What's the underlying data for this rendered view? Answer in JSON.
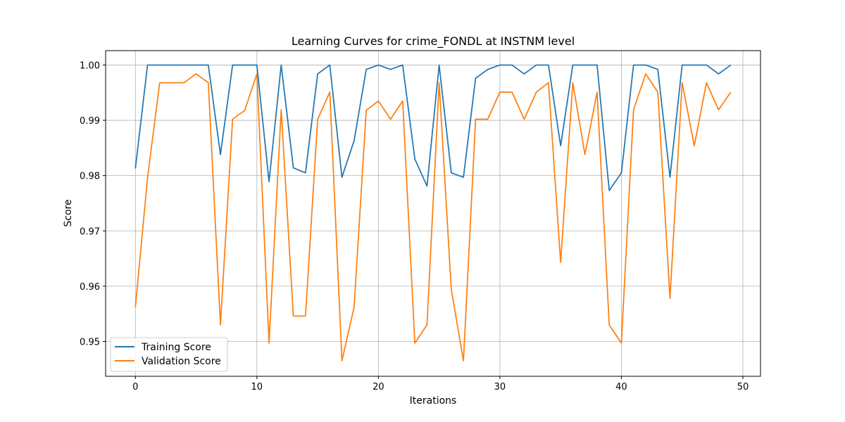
{
  "chart_data": {
    "type": "line",
    "title": "Learning Curves for crime_FONDL at INSTNM level",
    "xlabel": "Iterations",
    "ylabel": "Score",
    "xlim": [
      -2.45,
      51.45
    ],
    "ylim": [
      0.9437,
      1.0026
    ],
    "xticks": [
      0,
      10,
      20,
      30,
      40,
      50
    ],
    "yticks": [
      0.95,
      0.96,
      0.97,
      0.98,
      0.99,
      1.0
    ],
    "ytick_labels": [
      "0.95",
      "0.96",
      "0.97",
      "0.98",
      "0.99",
      "1.00"
    ],
    "grid": true,
    "legend_position": "lower-left",
    "x": [
      0,
      1,
      2,
      3,
      4,
      5,
      6,
      7,
      8,
      9,
      10,
      11,
      12,
      13,
      14,
      15,
      16,
      17,
      18,
      19,
      20,
      21,
      22,
      23,
      24,
      25,
      26,
      27,
      28,
      29,
      30,
      31,
      32,
      33,
      34,
      35,
      36,
      37,
      38,
      39,
      40,
      41,
      42,
      43,
      44,
      45,
      46,
      47,
      48,
      49
    ],
    "series": [
      {
        "name": "Training Score",
        "color": "#1f77b4",
        "values": [
          0.9813,
          1.0,
          1.0,
          1.0,
          1.0,
          1.0,
          1.0,
          0.9838,
          1.0,
          1.0,
          1.0,
          0.9789,
          1.0,
          0.9814,
          0.9805,
          0.9984,
          1.0,
          0.9797,
          0.9863,
          0.9992,
          1.0,
          0.9992,
          1.0,
          0.983,
          0.9781,
          1.0,
          0.9805,
          0.9797,
          0.9976,
          0.9992,
          1.0,
          1.0,
          0.9984,
          1.0,
          1.0,
          0.9854,
          1.0,
          1.0,
          1.0,
          0.9773,
          0.9805,
          1.0,
          1.0,
          0.9992,
          0.9797,
          1.0,
          1.0,
          1.0,
          0.9984,
          1.0
        ]
      },
      {
        "name": "Validation Score",
        "color": "#ff7f0e",
        "values": [
          0.9562,
          0.9796,
          0.9968,
          0.9968,
          0.9968,
          0.9984,
          0.9968,
          0.953,
          0.9902,
          0.9918,
          0.9984,
          0.9497,
          0.9919,
          0.9546,
          0.9546,
          0.9902,
          0.9951,
          0.9465,
          0.9562,
          0.9918,
          0.9935,
          0.9902,
          0.9935,
          0.9497,
          0.953,
          0.9968,
          0.9594,
          0.9465,
          0.9902,
          0.9902,
          0.9951,
          0.9951,
          0.9902,
          0.9951,
          0.9968,
          0.9643,
          0.9968,
          0.9838,
          0.9951,
          0.953,
          0.9497,
          0.9919,
          0.9984,
          0.9951,
          0.9578,
          0.9968,
          0.9854,
          0.9968,
          0.9919,
          0.9951
        ]
      }
    ]
  }
}
